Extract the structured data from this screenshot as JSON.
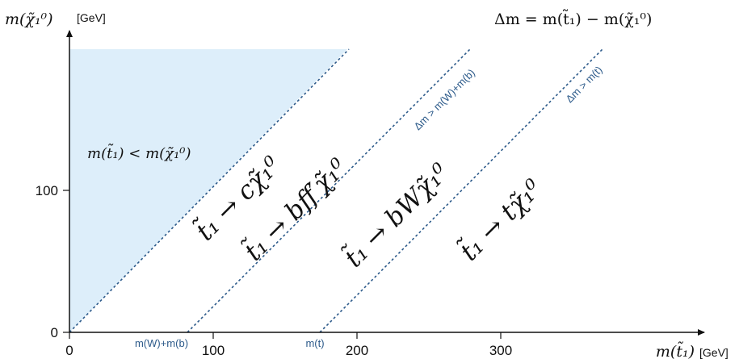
{
  "axes": {
    "x_title": "m(t̃₁)",
    "x_unit": "[GeV]",
    "y_title": "m(χ̃₁⁰)",
    "y_unit": "[GeV]",
    "x_ticks": [
      "0",
      "100",
      "200",
      "300"
    ],
    "y_ticks": [
      "0",
      "100"
    ]
  },
  "formula": "Δm = m(t̃₁) − m(χ̃₁⁰)",
  "forbidden_region_label": "m(t̃₁) < m(χ̃₁⁰)",
  "boundaries": [
    {
      "label": "",
      "axis_label": ""
    },
    {
      "label": "Δm > m(W)+m(b)",
      "axis_label": "m(W)+m(b)"
    },
    {
      "label": "Δm > m(t)",
      "axis_label": "m(t)"
    }
  ],
  "decays": [
    "t̃₁ → cχ̃₁⁰",
    "t̃₁ → bff′χ̃₁⁰",
    "t̃₁ → bWχ̃₁⁰",
    "t̃₁ → tχ̃₁⁰"
  ],
  "colors": {
    "forbidden_fill": "#ddeefa",
    "boundary_line": "#2c5a8a",
    "axis": "#111111"
  }
}
